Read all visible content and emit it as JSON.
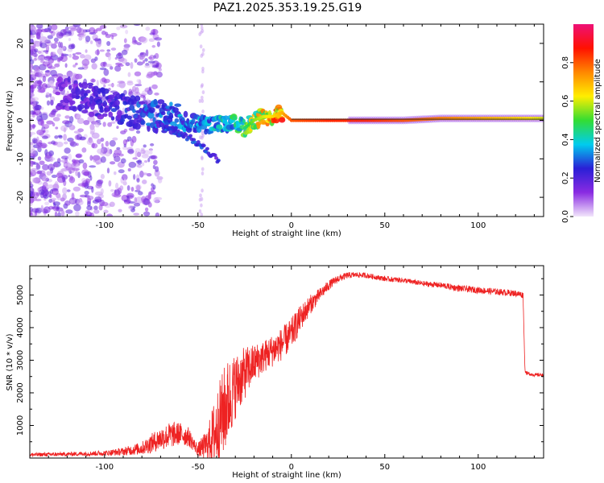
{
  "chart_data": [
    {
      "type": "heatmap",
      "title": "PAZ1.2025.353.19.25.G19",
      "xlabel": "Height of straight line (km)",
      "ylabel": "Frequency (Hz)",
      "xlim": [
        -140,
        135
      ],
      "ylim": [
        -25,
        25
      ],
      "xticks": [
        -100,
        -50,
        0,
        50,
        100
      ],
      "yticks": [
        -20,
        -10,
        0,
        10,
        20
      ],
      "colorbar": {
        "label": "Normalized spectral amplitude",
        "range": [
          0,
          1
        ],
        "ticks": [
          0.0,
          0.2,
          0.4,
          0.6,
          0.8
        ],
        "tick_labels": [
          "0.0",
          "0.2",
          "0.4",
          "0.6",
          "0.8"
        ],
        "colormap": [
          "#f2e6fb",
          "#8a2be2",
          "#2a1fd6",
          "#00ccee",
          "#33dd33",
          "#ffee00",
          "#ff8800",
          "#ff1100",
          "#ee1177"
        ]
      },
      "ridge": {
        "x": [
          -120,
          -110,
          -100,
          -90,
          -80,
          -70,
          -60,
          -50,
          -40,
          -30,
          -25,
          -20,
          -15,
          -10,
          -5,
          0,
          20,
          40,
          60,
          80,
          100,
          120,
          135
        ],
        "freq": [
          7,
          6,
          4,
          3,
          2,
          1,
          0,
          -1,
          -1,
          -1,
          -2,
          0,
          1,
          1,
          2,
          0,
          0,
          0,
          0,
          0.5,
          0.5,
          0.5,
          0.5
        ],
        "amplitude": [
          0.15,
          0.2,
          0.2,
          0.22,
          0.25,
          0.28,
          0.3,
          0.3,
          0.33,
          0.4,
          0.45,
          0.55,
          0.6,
          0.65,
          0.7,
          0.8,
          0.85,
          0.85,
          0.8,
          0.75,
          0.7,
          0.65,
          0.6
        ]
      },
      "branch": {
        "x": [
          -70,
          -60,
          -50,
          -45,
          -40
        ],
        "freq": [
          -1,
          -3,
          -6,
          -8,
          -10
        ],
        "amplitude": [
          0.2,
          0.22,
          0.24,
          0.26,
          0.2
        ]
      }
    },
    {
      "type": "line",
      "title": "",
      "xlabel": "Height of straight line (km)",
      "ylabel": "SNR (10 * v/v)",
      "xlim": [
        -140,
        135
      ],
      "ylim": [
        0,
        5900
      ],
      "xticks": [
        -100,
        -50,
        0,
        50,
        100
      ],
      "yticks": [
        1000,
        2000,
        3000,
        4000,
        5000
      ],
      "color": "#ee2222",
      "series": [
        {
          "name": "SNR",
          "x": [
            -140,
            -120,
            -100,
            -90,
            -80,
            -75,
            -70,
            -65,
            -60,
            -55,
            -52,
            -50,
            -45,
            -40,
            -35,
            -30,
            -25,
            -20,
            -15,
            -10,
            -5,
            0,
            5,
            10,
            15,
            20,
            25,
            30,
            35,
            40,
            50,
            60,
            70,
            80,
            90,
            100,
            110,
            120,
            124,
            125,
            126,
            130,
            135
          ],
          "y": [
            100,
            120,
            150,
            200,
            300,
            450,
            600,
            700,
            750,
            650,
            400,
            250,
            400,
            900,
            1600,
            2200,
            2600,
            2900,
            3100,
            3300,
            3500,
            3800,
            4300,
            4700,
            5000,
            5300,
            5500,
            5600,
            5620,
            5600,
            5500,
            5450,
            5350,
            5300,
            5200,
            5150,
            5100,
            5050,
            5000,
            2700,
            2600,
            2550,
            2550
          ],
          "noise_amplitude": [
            60,
            60,
            80,
            120,
            200,
            300,
            350,
            400,
            350,
            300,
            200,
            200,
            500,
            1200,
            1400,
            1000,
            800,
            600,
            500,
            500,
            500,
            500,
            400,
            300,
            200,
            150,
            120,
            100,
            80,
            80,
            80,
            80,
            80,
            90,
            100,
            100,
            100,
            100,
            100,
            60,
            60,
            50,
            50
          ]
        }
      ]
    }
  ]
}
